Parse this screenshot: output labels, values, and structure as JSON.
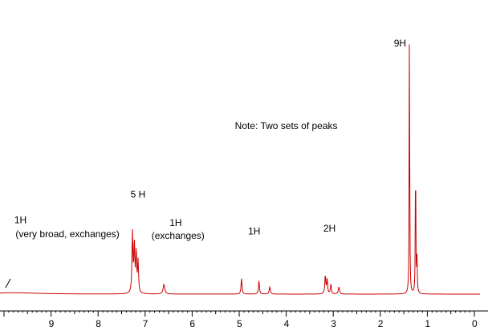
{
  "chart_data": {
    "type": "line",
    "title": "",
    "xlabel": "",
    "ylabel": "",
    "xlim": [
      10.0,
      0.0
    ],
    "x_reversed": true,
    "ylim": [
      0,
      100
    ],
    "grid": false,
    "legend": "none",
    "line_color": "#cc0000",
    "x_ticks": [
      9,
      8,
      7,
      6,
      5,
      4,
      3,
      2,
      1,
      0
    ],
    "peaks": [
      {
        "ppm": 7.27,
        "height": 21,
        "width": 0.012
      },
      {
        "ppm": 7.23,
        "height": 17,
        "width": 0.012
      },
      {
        "ppm": 7.19,
        "height": 14,
        "width": 0.012
      },
      {
        "ppm": 7.15,
        "height": 11,
        "width": 0.012
      },
      {
        "ppm": 6.6,
        "height": 3.5,
        "width": 0.02
      },
      {
        "ppm": 4.95,
        "height": 5.5,
        "width": 0.012
      },
      {
        "ppm": 4.58,
        "height": 4.7,
        "width": 0.012
      },
      {
        "ppm": 4.35,
        "height": 2.5,
        "width": 0.015
      },
      {
        "ppm": 3.17,
        "height": 6.5,
        "width": 0.012
      },
      {
        "ppm": 3.13,
        "height": 5,
        "width": 0.012
      },
      {
        "ppm": 3.05,
        "height": 3.5,
        "width": 0.012
      },
      {
        "ppm": 2.88,
        "height": 2.5,
        "width": 0.015
      },
      {
        "ppm": 1.38,
        "height": 100,
        "width": 0.006
      },
      {
        "ppm": 1.25,
        "height": 53,
        "width": 0.006
      },
      {
        "ppm": 1.22,
        "height": 12,
        "width": 0.008
      }
    ],
    "broad_peaks": [
      {
        "ppm": 9.8,
        "height": 0.5,
        "width": 0.6
      }
    ],
    "annotations": [
      {
        "id": "nh-label-1",
        "text": "1H",
        "ppm": 9.65,
        "level": 25
      },
      {
        "id": "nh-label-2",
        "text": "(very broad, exchanges)",
        "ppm": 8.65,
        "level": 20
      },
      {
        "id": "aromatic-label",
        "text": "5 H",
        "ppm": 7.15,
        "level": 34
      },
      {
        "id": "oh-label-1",
        "text": "1H",
        "ppm": 6.35,
        "level": 24
      },
      {
        "id": "oh-label-2",
        "text": "(exchanges)",
        "ppm": 6.3,
        "level": 19.5
      },
      {
        "id": "ch-label",
        "text": "1H",
        "ppm": 4.68,
        "level": 21
      },
      {
        "id": "ch2-label",
        "text": "2H",
        "ppm": 3.08,
        "level": 22
      },
      {
        "id": "tbu-label",
        "text": "9H",
        "ppm": 1.58,
        "level": 87
      },
      {
        "id": "note-label",
        "text": "Note: Two sets of peaks",
        "ppm": 4.0,
        "level": 58
      }
    ]
  }
}
